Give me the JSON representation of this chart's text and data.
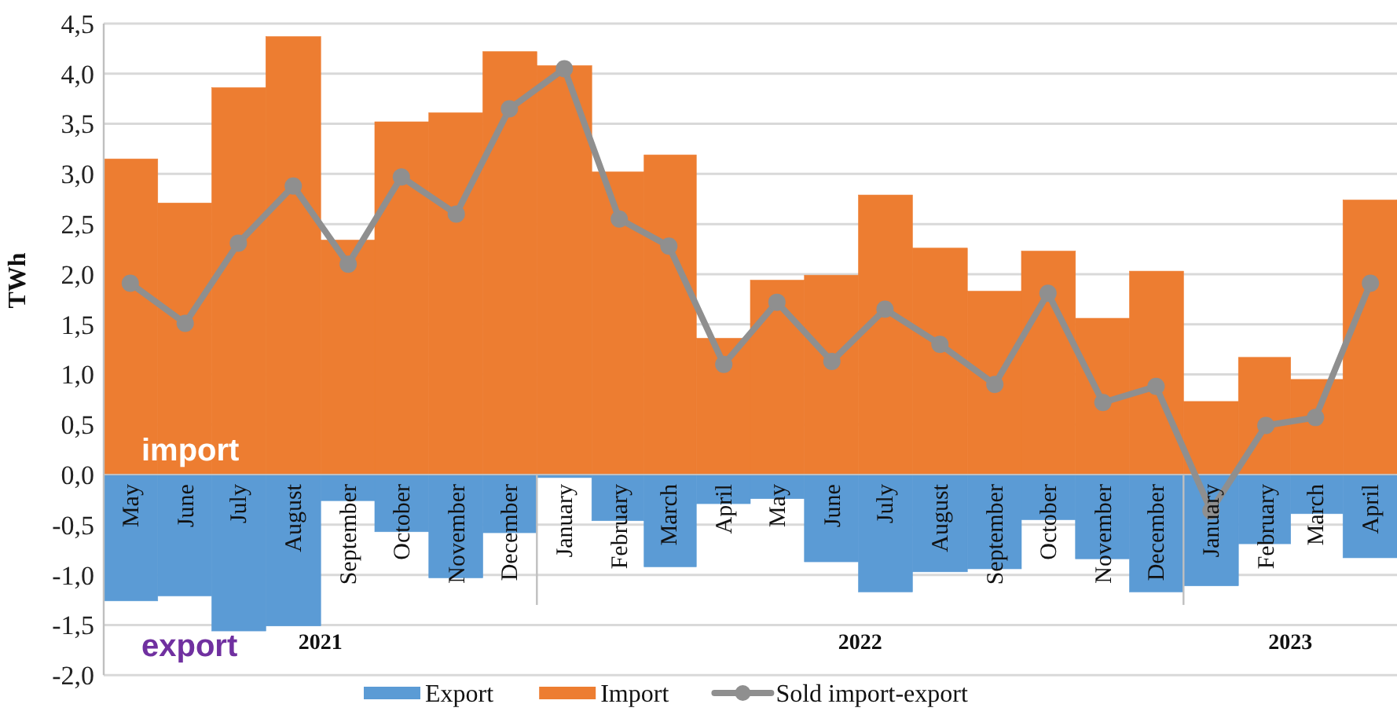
{
  "chart_data": {
    "type": "bar",
    "stacked": true,
    "ylabel": "TWh",
    "x": [
      "2021-05",
      "2021-06",
      "2021-07",
      "2021-08",
      "2021-09",
      "2021-10",
      "2021-11",
      "2021-12",
      "2022-01",
      "2022-02",
      "2022-03",
      "2022-04",
      "2022-05",
      "2022-06",
      "2022-07",
      "2022-08",
      "2022-09",
      "2022-10",
      "2022-11",
      "2022-12",
      "2023-01",
      "2023-02",
      "2023-03",
      "2023-04"
    ],
    "xticks": [
      {
        "value": "2021-05",
        "label": "May"
      },
      {
        "value": "2021-06",
        "label": "June"
      },
      {
        "value": "2021-07",
        "label": "July"
      },
      {
        "value": "2021-08",
        "label": "August"
      },
      {
        "value": "2021-09",
        "label": "September"
      },
      {
        "value": "2021-10",
        "label": "October"
      },
      {
        "value": "2021-11",
        "label": "November"
      },
      {
        "value": "2021-12",
        "label": "December"
      },
      {
        "value": "2022-01",
        "label": "January"
      },
      {
        "value": "2022-02",
        "label": "February"
      },
      {
        "value": "2022-03",
        "label": "March"
      },
      {
        "value": "2022-04",
        "label": "April"
      },
      {
        "value": "2022-05",
        "label": "May"
      },
      {
        "value": "2022-06",
        "label": "June"
      },
      {
        "value": "2022-07",
        "label": "July"
      },
      {
        "value": "2022-08",
        "label": "August"
      },
      {
        "value": "2022-09",
        "label": "September"
      },
      {
        "value": "2022-10",
        "label": "October"
      },
      {
        "value": "2022-11",
        "label": "November"
      },
      {
        "value": "2022-12",
        "label": "December"
      },
      {
        "value": "2023-01",
        "label": "January"
      },
      {
        "value": "2023-02",
        "label": "February"
      },
      {
        "value": "2023-03",
        "label": "March"
      },
      {
        "value": "2023-04",
        "label": "April"
      }
    ],
    "series": [
      {
        "name": "Export",
        "color": "#5b9bd5",
        "values": [
          -1.26,
          -1.21,
          -1.56,
          -1.51,
          -0.26,
          -0.57,
          -1.03,
          -0.58,
          -0.03,
          -0.46,
          -0.92,
          -0.29,
          -0.24,
          -0.87,
          -1.17,
          -0.97,
          -0.94,
          -0.45,
          -0.84,
          -1.17,
          -1.11,
          -0.69,
          -0.39,
          -0.83
        ]
      },
      {
        "name": "Import",
        "color": "#ed7d31",
        "values": [
          3.15,
          2.71,
          3.86,
          4.37,
          2.34,
          3.52,
          3.61,
          4.22,
          4.08,
          3.02,
          3.19,
          1.36,
          1.94,
          1.99,
          2.79,
          2.26,
          1.83,
          2.23,
          1.56,
          2.03,
          0.73,
          1.17,
          0.95,
          2.74
        ]
      },
      {
        "name": "Sold import-export",
        "type": "line",
        "color": "#8f8f8f",
        "marker": "circle",
        "values": [
          1.91,
          1.51,
          2.31,
          2.88,
          2.1,
          2.97,
          2.6,
          3.65,
          4.05,
          2.55,
          2.28,
          1.1,
          1.72,
          1.13,
          1.65,
          1.3,
          0.9,
          1.81,
          0.72,
          0.88,
          -0.36,
          0.49,
          0.57,
          1.91
        ]
      }
    ],
    "xlim": [
      "2021-04-16",
      "2023-04-16"
    ],
    "ylim": [
      -2,
      4.5
    ],
    "yticks": [
      {
        "value": -2,
        "label": "-2,0"
      },
      {
        "value": -1.5,
        "label": "-1,5"
      },
      {
        "value": -1,
        "label": "-1,0"
      },
      {
        "value": -0.5,
        "label": "-0,5"
      },
      {
        "value": 0,
        "label": "0,0"
      },
      {
        "value": 0.5,
        "label": "0,5"
      },
      {
        "value": 1,
        "label": "1,0"
      },
      {
        "value": 1.5,
        "label": "1,5"
      },
      {
        "value": 2,
        "label": "2,0"
      },
      {
        "value": 2.5,
        "label": "2,5"
      },
      {
        "value": 3,
        "label": "3,0"
      },
      {
        "value": 3.5,
        "label": "3,5"
      },
      {
        "value": 4,
        "label": "4,0"
      },
      {
        "value": 4.5,
        "label": "4,5"
      }
    ],
    "grid": "y",
    "legend": "bottom",
    "annotations": [
      "import",
      "export",
      "2021",
      "2022",
      "2023"
    ]
  }
}
